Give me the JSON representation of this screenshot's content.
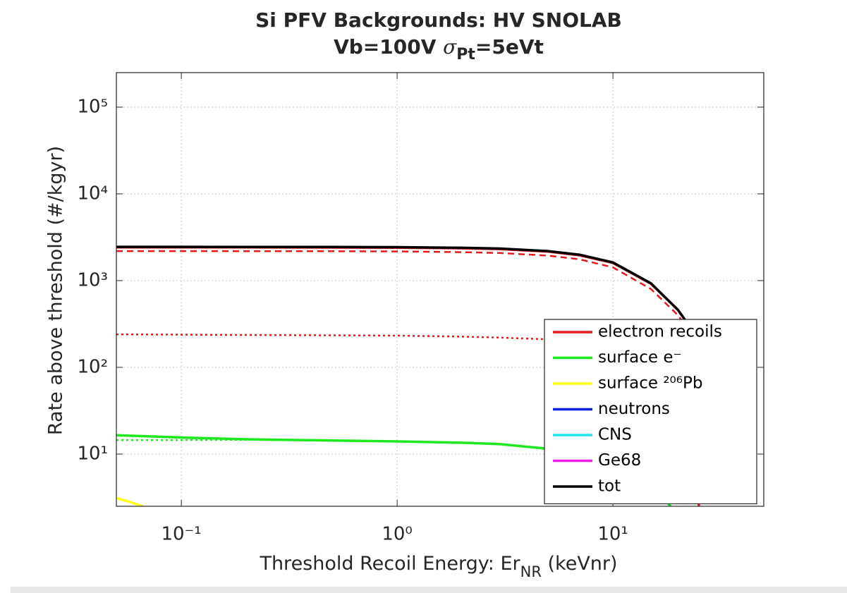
{
  "chart_data": {
    "type": "line",
    "title": "Si PFV Backgrounds: HV SNOLAB",
    "subtitle": [
      "Vb=100V ",
      "σ",
      "Pt",
      "=5eVt"
    ],
    "xlabel": [
      "Threshold Recoil Energy: Er",
      "NR",
      " (keVnr)"
    ],
    "ylabel": "Rate above threshold (#/kgyr)",
    "xscale": "log",
    "yscale": "log",
    "xlim": [
      0.05,
      50
    ],
    "ylim": [
      2.5,
      250000
    ],
    "xticks": [
      {
        "value": 0.1,
        "label": "10⁻¹"
      },
      {
        "value": 1,
        "label": "10⁰"
      },
      {
        "value": 10,
        "label": "10¹"
      }
    ],
    "yticks": [
      {
        "value": 10,
        "label": "10¹"
      },
      {
        "value": 100,
        "label": "10²"
      },
      {
        "value": 1000,
        "label": "10³"
      },
      {
        "value": 10000,
        "label": "10⁴"
      },
      {
        "value": 100000,
        "label": "10⁵"
      }
    ],
    "grid": true,
    "legend": "southeast",
    "series": [
      {
        "name": "electron recoils",
        "color": "#e41a1c",
        "style": "solid",
        "x": [
          0.05,
          0.1,
          0.2,
          0.5,
          1,
          2,
          3,
          5,
          7,
          10,
          15,
          20,
          22,
          24,
          25,
          25
        ],
        "values": [
          2420,
          2420,
          2415,
          2410,
          2400,
          2360,
          2310,
          2160,
          1960,
          1600,
          920,
          460,
          330,
          200,
          60,
          2.5
        ]
      },
      {
        "name": "surface e⁻",
        "color": "#1ee81e",
        "style": "solid",
        "x": [
          0.05,
          0.1,
          0.2,
          0.5,
          1,
          2,
          3,
          5,
          7,
          10,
          15,
          17,
          18.5
        ],
        "values": [
          16.5,
          15.5,
          14.8,
          14.3,
          14,
          13.5,
          13,
          11.5,
          10,
          8,
          4.5,
          3.2,
          2.5
        ]
      },
      {
        "name": "surface ²⁰⁶Pb",
        "color": "#ffff1a",
        "style": "solid",
        "x": [
          0.05,
          0.058,
          0.066
        ],
        "values": [
          3.1,
          2.8,
          2.5
        ]
      },
      {
        "name": "neutrons",
        "color": "#0b1fe0",
        "style": "solid",
        "x": [],
        "values": []
      },
      {
        "name": "CNS",
        "color": "#22e3f0",
        "style": "solid",
        "x": [],
        "values": []
      },
      {
        "name": "Ge68",
        "color": "#ee1ee8",
        "style": "solid",
        "x": [],
        "values": []
      },
      {
        "name": "tot",
        "color": "#000000",
        "style": "solid",
        "x": [
          0.05,
          0.1,
          0.2,
          0.5,
          1,
          2,
          3,
          5,
          7,
          10,
          15,
          20,
          22
        ],
        "values": [
          2450,
          2450,
          2445,
          2440,
          2430,
          2390,
          2340,
          2190,
          1990,
          1620,
          930,
          460,
          330
        ]
      },
      {
        "color": "#e41a1c",
        "style": "dashed",
        "x": [
          0.05,
          0.1,
          0.2,
          0.5,
          1,
          2,
          3,
          5,
          7,
          10,
          15,
          20,
          22
        ],
        "values": [
          2190,
          2190,
          2185,
          2180,
          2170,
          2130,
          2080,
          1940,
          1760,
          1420,
          800,
          400,
          290
        ]
      },
      {
        "color": "#e41a1c",
        "style": "dotted",
        "x": [
          0.05,
          0.1,
          0.2,
          0.5,
          1,
          2,
          3,
          5
        ],
        "values": [
          240,
          238,
          236,
          234,
          232,
          226,
          220,
          210
        ]
      },
      {
        "color": "#1ee81e",
        "style": "dotted",
        "x": [
          0.05,
          0.1,
          0.2
        ],
        "values": [
          14.5,
          14.5,
          14.6
        ]
      }
    ]
  }
}
